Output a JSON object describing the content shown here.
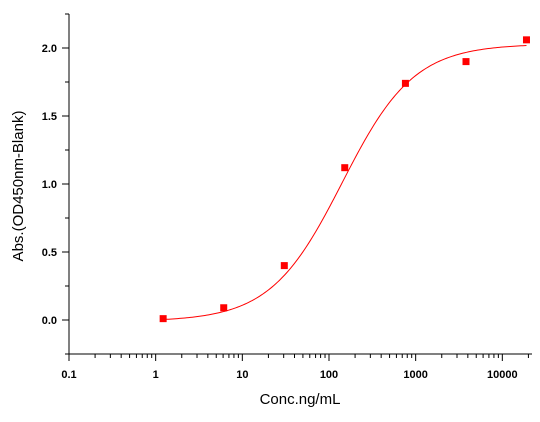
{
  "chart_data": {
    "type": "scatter",
    "title": "",
    "xlabel": "Conc.ng/mL",
    "ylabel": "Abs.(OD450nm-Blank)",
    "x_scale": "log",
    "xlim": [
      0.1,
      22000
    ],
    "ylim": [
      -0.25,
      2.25
    ],
    "x_ticks": [
      0.1,
      1,
      10,
      100,
      1000,
      10000
    ],
    "x_tick_labels": [
      "0.1",
      "1",
      "10",
      "100",
      "1000",
      "10000"
    ],
    "y_ticks": [
      0.0,
      0.5,
      1.0,
      1.5,
      2.0
    ],
    "y_tick_labels": [
      "0.0",
      "0.5",
      "1.0",
      "1.5",
      "2.0"
    ],
    "grid": false,
    "legend": "none",
    "series": [
      {
        "color": "#ff0000",
        "marker": "square",
        "x": [
          1.22,
          6.1,
          30.5,
          152,
          762,
          3810,
          19000
        ],
        "y": [
          0.01,
          0.09,
          0.4,
          1.12,
          1.74,
          1.9,
          2.06
        ]
      }
    ],
    "fit_curve": {
      "model": "4PL",
      "color": "#ff0000",
      "bottom": -0.01,
      "top": 2.03,
      "ec50": 142,
      "hill": 1.05
    }
  }
}
